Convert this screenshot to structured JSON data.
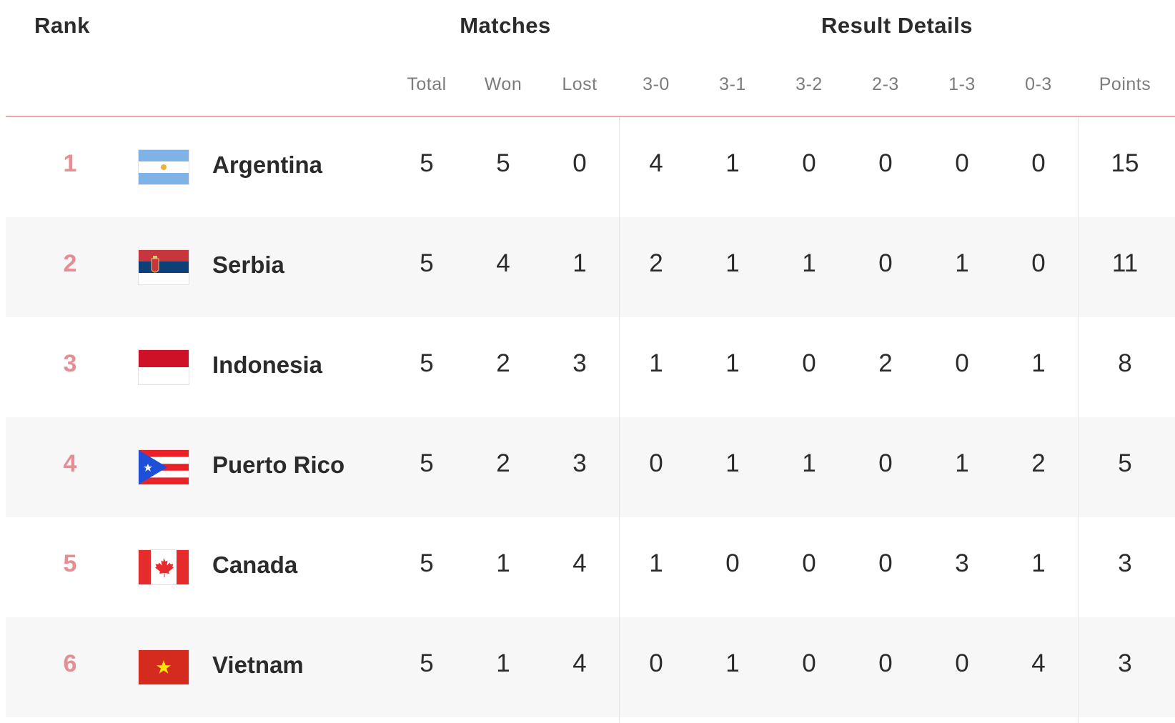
{
  "headers": {
    "rank": "Rank",
    "matches": "Matches",
    "result_details": "Result Details",
    "columns": [
      "Total",
      "Won",
      "Lost",
      "3-0",
      "3-1",
      "3-2",
      "2-3",
      "1-3",
      "0-3",
      "Points"
    ]
  },
  "rows": [
    {
      "rank": "1",
      "team": "Argentina",
      "flag": "argentina-flag-icon",
      "values": [
        "5",
        "5",
        "0",
        "4",
        "1",
        "0",
        "0",
        "0",
        "0",
        "15"
      ]
    },
    {
      "rank": "2",
      "team": "Serbia",
      "flag": "serbia-flag-icon",
      "values": [
        "5",
        "4",
        "1",
        "2",
        "1",
        "1",
        "0",
        "1",
        "0",
        "11"
      ]
    },
    {
      "rank": "3",
      "team": "Indonesia",
      "flag": "indonesia-flag-icon",
      "values": [
        "5",
        "2",
        "3",
        "1",
        "1",
        "0",
        "2",
        "0",
        "1",
        "8"
      ]
    },
    {
      "rank": "4",
      "team": "Puerto Rico",
      "flag": "puerto-rico-flag-icon",
      "values": [
        "5",
        "2",
        "3",
        "0",
        "1",
        "1",
        "0",
        "1",
        "2",
        "5"
      ]
    },
    {
      "rank": "5",
      "team": "Canada",
      "flag": "canada-flag-icon",
      "values": [
        "5",
        "1",
        "4",
        "1",
        "0",
        "0",
        "0",
        "3",
        "1",
        "3"
      ]
    },
    {
      "rank": "6",
      "team": "Vietnam",
      "flag": "vietnam-flag-icon",
      "values": [
        "5",
        "1",
        "4",
        "0",
        "1",
        "0",
        "0",
        "0",
        "4",
        "3"
      ]
    }
  ],
  "colors": {
    "rank": "#e58e93",
    "header_rule": "#e8a4aa",
    "alt_row": "#f7f7f7"
  }
}
